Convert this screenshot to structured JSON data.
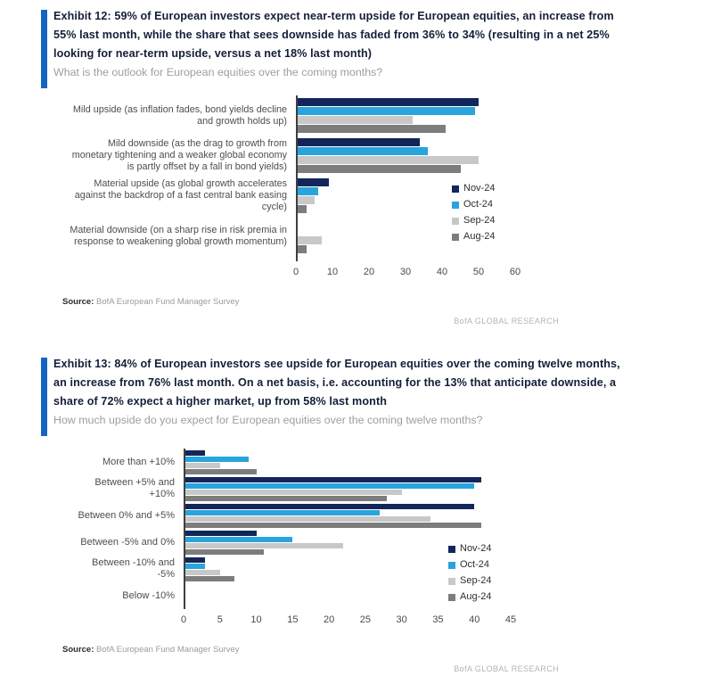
{
  "brand": {
    "accent_blue": "#1565c0",
    "title_color": "#141e38",
    "subtitle_color": "#9e9e9e",
    "research_label": "BofA GLOBAL RESEARCH"
  },
  "source": {
    "label": "Source:",
    "text": "BofA European Fund Manager Survey"
  },
  "exhibits": [
    {
      "title": "Exhibit 12: 59% of European investors expect near-term upside for European equities, an increase from 55% last month, while the share that sees downside has faded from 36% to 34% (resulting in a net 25% looking for near-term upside, versus a net 18% last month)",
      "subtitle": "What is the outlook for European equities over the coming months?"
    },
    {
      "title": "Exhibit 13: 84% of European investors see upside for European equities over the coming twelve months, an increase from 76% last month. On a net basis, i.e. accounting for the 13% that anticipate downside, a share of 72% expect a higher market, up from 58% last month",
      "subtitle": "How much upside do you expect for European equities over the coming twelve months?"
    }
  ],
  "chart_data": [
    {
      "type": "bar",
      "orientation": "horizontal",
      "title": "What is the outlook for European equities over the coming months?",
      "categories": [
        "Mild upside (as inflation fades, bond yields decline and growth holds up)",
        "Mild downside (as the drag to growth from monetary tightening and a weaker global economy is partly offset by a fall in bond yields)",
        "Material upside (as global growth accelerates against the backdrop of a fast central bank easing cycle)",
        "Material downside (on a sharp rise in risk premia in response to weakening global growth momentum)"
      ],
      "series": [
        {
          "name": "Nov-24",
          "color": "#13265a",
          "values": [
            50,
            34,
            9,
            0
          ]
        },
        {
          "name": "Oct-24",
          "color": "#29a4dc",
          "values": [
            49,
            36,
            6,
            0
          ]
        },
        {
          "name": "Sep-24",
          "color": "#c8c8c8",
          "values": [
            32,
            50,
            5,
            7
          ]
        },
        {
          "name": "Aug-24",
          "color": "#7d7d7d",
          "values": [
            41,
            45,
            3,
            3
          ]
        }
      ],
      "xlim": [
        0,
        60
      ],
      "xticks": [
        0,
        10,
        20,
        30,
        40,
        50,
        60
      ],
      "grid": false,
      "legend_position": "right-inside"
    },
    {
      "type": "bar",
      "orientation": "horizontal",
      "title": "How much upside do you expect for European equities over the coming twelve months?",
      "categories": [
        "More than +10%",
        "Between +5% and +10%",
        "Between 0% and +5%",
        "Between -5% and 0%",
        "Between -10% and -5%",
        "Below -10%"
      ],
      "series": [
        {
          "name": "Nov-24",
          "color": "#13265a",
          "values": [
            3,
            41,
            40,
            10,
            3,
            0
          ]
        },
        {
          "name": "Oct-24",
          "color": "#29a4dc",
          "values": [
            9,
            40,
            27,
            15,
            3,
            0
          ]
        },
        {
          "name": "Sep-24",
          "color": "#c8c8c8",
          "values": [
            5,
            30,
            34,
            22,
            5,
            0
          ]
        },
        {
          "name": "Aug-24",
          "color": "#7d7d7d",
          "values": [
            10,
            28,
            41,
            11,
            7,
            0
          ]
        }
      ],
      "xlim": [
        0,
        45
      ],
      "xticks": [
        0,
        5,
        10,
        15,
        20,
        25,
        30,
        35,
        40,
        45
      ],
      "grid": false,
      "legend_position": "right-inside"
    }
  ]
}
